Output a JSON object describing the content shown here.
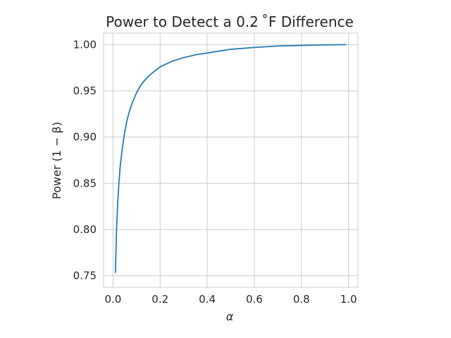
{
  "chart_data": {
    "type": "line",
    "title": "Power to Detect a 0.2 ˚F Difference",
    "xlabel": "α",
    "ylabel": "Power (1 − β)",
    "xlim": [
      -0.04,
      1.04
    ],
    "ylim": [
      0.7375,
      1.0125
    ],
    "xticks": [
      0.0,
      0.2,
      0.4,
      0.6,
      0.8,
      1.0
    ],
    "xtick_labels": [
      "0.0",
      "0.2",
      "0.4",
      "0.6",
      "0.8",
      "1.0"
    ],
    "yticks": [
      0.75,
      0.8,
      0.85,
      0.9,
      0.95,
      1.0
    ],
    "ytick_labels": [
      "0.75",
      "0.80",
      "0.85",
      "0.90",
      "0.95",
      "1.00"
    ],
    "grid": true,
    "series": [
      {
        "color": "#1f77b4",
        "x": [
          0.01,
          0.015,
          0.02,
          0.025,
          0.03,
          0.04,
          0.05,
          0.06,
          0.07,
          0.08,
          0.1,
          0.12,
          0.14,
          0.16,
          0.18,
          0.2,
          0.25,
          0.3,
          0.35,
          0.4,
          0.45,
          0.5,
          0.6,
          0.7,
          0.8,
          0.9,
          0.99
        ],
        "y": [
          0.753,
          0.8,
          0.829,
          0.85,
          0.867,
          0.889,
          0.906,
          0.919,
          0.928,
          0.936,
          0.948,
          0.957,
          0.963,
          0.968,
          0.972,
          0.976,
          0.982,
          0.986,
          0.989,
          0.991,
          0.993,
          0.995,
          0.997,
          0.9985,
          0.9992,
          0.9997,
          1.0
        ]
      }
    ]
  }
}
